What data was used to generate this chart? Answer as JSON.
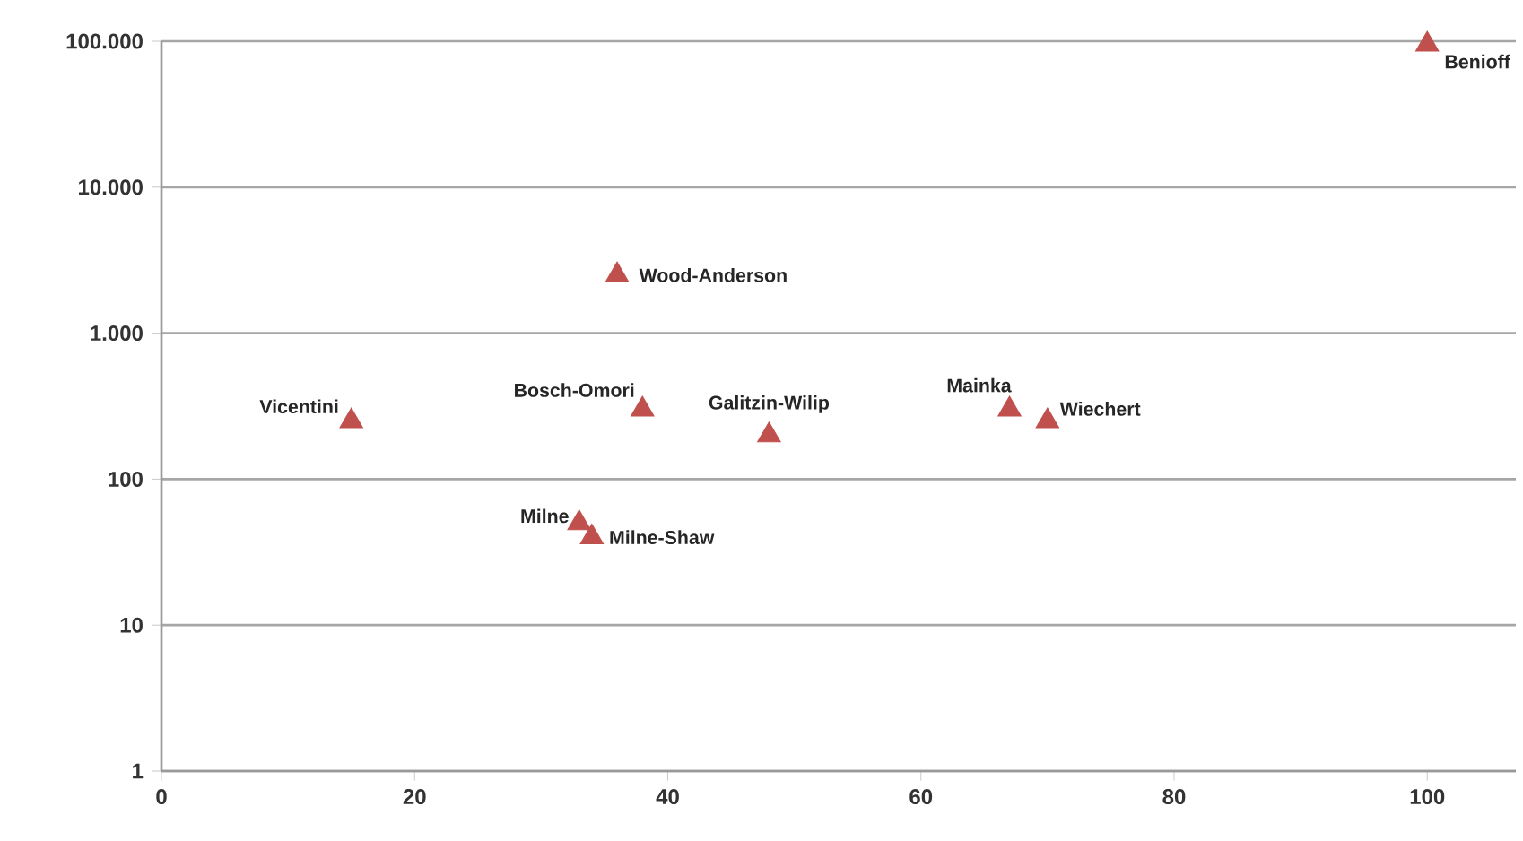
{
  "chart_data": {
    "type": "scatter",
    "x": [
      100,
      36,
      15,
      38,
      48,
      67,
      70,
      33,
      34
    ],
    "series": [
      {
        "color": "#c0504d",
        "values": [
          95000,
          2500,
          250,
          300,
          200,
          300,
          250,
          50,
          40
        ]
      }
    ],
    "marker": "triangle",
    "log": "y",
    "grid": "y",
    "xlim": [
      0,
      107
    ],
    "xticks": [
      0,
      20,
      40,
      60,
      80,
      100
    ],
    "ylim": [
      1,
      100000
    ],
    "yticks": [
      1,
      10,
      {
        "value": 100,
        "label": "100"
      },
      {
        "value": 1000,
        "label": "1.000"
      },
      {
        "value": 10000,
        "label": "10.000"
      },
      {
        "value": 100000,
        "label": "100.000"
      }
    ],
    "annotations": [
      {
        "text": "Benioff",
        "x": 100,
        "y": 95000
      },
      {
        "text": "Wood-Anderson",
        "x": 36,
        "y": 2500
      },
      {
        "text": "Vicentini",
        "x": 15,
        "y": 250
      },
      {
        "text": "Bosch-Omori",
        "x": 38,
        "y": 300
      },
      {
        "text": "Galitzin-Wilip",
        "x": 48,
        "y": 200
      },
      {
        "text": "Mainka",
        "x": 67,
        "y": 300
      },
      {
        "text": "Wiechert",
        "x": 70,
        "y": 250
      },
      {
        "text": "Milne",
        "x": 33,
        "y": 50
      },
      {
        "text": "Milne-Shaw",
        "x": 34,
        "y": 40
      }
    ]
  }
}
